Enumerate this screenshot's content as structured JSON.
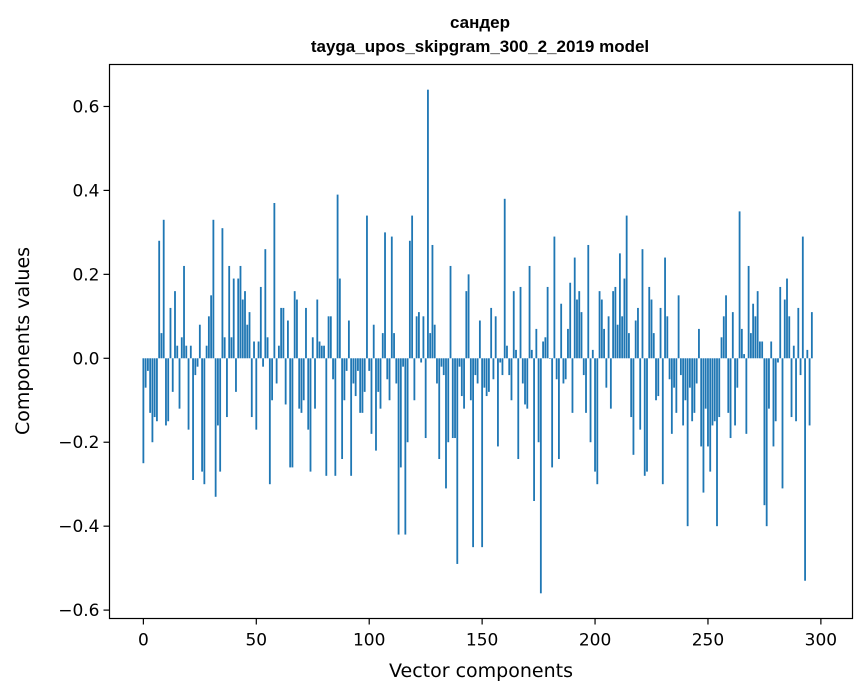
{
  "chart_data": {
    "type": "bar",
    "title": "сандер",
    "subtitle": "tayga_upos_skipgram_300_2_2019 model",
    "xlabel": "Vector components",
    "ylabel": "Components values",
    "xlim": [
      -15,
      314
    ],
    "ylim": [
      -0.62,
      0.7
    ],
    "xticks": [
      0,
      50,
      100,
      150,
      200,
      250,
      300
    ],
    "yticks": [
      0.6,
      0.4,
      0.2,
      0.0,
      -0.2,
      -0.4,
      -0.6
    ],
    "xtick_labels": [
      "0",
      "50",
      "100",
      "150",
      "200",
      "250",
      "300"
    ],
    "ytick_labels": [
      "0.6",
      "0.4",
      "0.2",
      "0.0",
      "−0.2",
      "−0.4",
      "−0.6"
    ],
    "grid": false,
    "bar_color": "#1f77b4",
    "values": [
      -0.25,
      -0.07,
      -0.03,
      -0.13,
      -0.2,
      -0.14,
      -0.15,
      0.28,
      0.06,
      0.33,
      -0.16,
      -0.15,
      0.12,
      -0.08,
      0.16,
      0.03,
      -0.12,
      0.05,
      0.22,
      0.03,
      -0.17,
      0.03,
      -0.29,
      -0.04,
      -0.02,
      0.08,
      -0.27,
      -0.3,
      0.03,
      0.1,
      0.15,
      0.33,
      -0.33,
      -0.16,
      -0.27,
      0.31,
      0.05,
      -0.14,
      0.22,
      0.05,
      0.19,
      -0.08,
      0.19,
      0.22,
      0.14,
      0.16,
      0.08,
      0.11,
      -0.14,
      0.04,
      -0.17,
      0.04,
      0.17,
      -0.02,
      0.26,
      0.05,
      -0.3,
      -0.1,
      0.37,
      -0.06,
      0.03,
      0.12,
      0.12,
      -0.11,
      0.09,
      -0.26,
      -0.26,
      0.16,
      0.14,
      -0.12,
      -0.13,
      -0.1,
      0.12,
      -0.17,
      -0.27,
      0.05,
      -0.12,
      0.14,
      0.04,
      0.03,
      0.03,
      -0.28,
      0.1,
      0.1,
      -0.05,
      -0.28,
      0.39,
      0.19,
      -0.24,
      -0.1,
      -0.03,
      0.09,
      -0.28,
      -0.06,
      -0.09,
      -0.03,
      -0.13,
      -0.13,
      -0.08,
      0.34,
      -0.03,
      -0.18,
      0.08,
      -0.22,
      -0.08,
      -0.12,
      0.06,
      0.3,
      -0.05,
      -0.1,
      0.29,
      0.06,
      -0.06,
      -0.42,
      -0.26,
      -0.02,
      -0.42,
      -0.2,
      0.28,
      0.34,
      -0.1,
      0.1,
      0.11,
      -0.01,
      0.1,
      -0.19,
      0.64,
      0.06,
      0.27,
      0.08,
      -0.06,
      -0.24,
      -0.02,
      -0.04,
      -0.31,
      -0.2,
      0.22,
      -0.19,
      -0.19,
      -0.49,
      -0.02,
      -0.09,
      -0.12,
      0.16,
      0.2,
      -0.1,
      -0.45,
      -0.04,
      -0.06,
      0.09,
      -0.45,
      -0.07,
      -0.09,
      -0.08,
      0.12,
      -0.05,
      0.1,
      -0.21,
      -0.01,
      -0.04,
      0.38,
      0.03,
      -0.04,
      -0.1,
      0.16,
      0.02,
      -0.24,
      0.17,
      -0.06,
      -0.11,
      -0.12,
      0.22,
      0.02,
      -0.34,
      0.07,
      -0.2,
      -0.56,
      0.04,
      0.05,
      0.17,
      0.0,
      -0.26,
      0.29,
      -0.05,
      -0.24,
      0.13,
      -0.06,
      -0.05,
      0.07,
      0.18,
      -0.13,
      0.24,
      0.14,
      0.16,
      0.11,
      -0.04,
      -0.13,
      0.27,
      -0.2,
      0.02,
      -0.27,
      -0.3,
      0.16,
      0.14,
      0.07,
      -0.07,
      0.1,
      -0.12,
      0.16,
      0.17,
      0.08,
      0.25,
      0.1,
      0.19,
      0.34,
      0.06,
      -0.14,
      -0.23,
      0.09,
      0.12,
      -0.17,
      0.26,
      -0.28,
      -0.27,
      0.17,
      0.14,
      0.06,
      -0.1,
      -0.09,
      0.12,
      -0.3,
      0.24,
      0.1,
      -0.05,
      -0.18,
      -0.07,
      -0.13,
      0.15,
      -0.04,
      -0.16,
      -0.1,
      -0.4,
      -0.07,
      -0.15,
      -0.13,
      -0.06,
      0.07,
      -0.21,
      -0.32,
      -0.12,
      -0.21,
      -0.27,
      -0.16,
      -0.15,
      -0.4,
      -0.14,
      0.05,
      0.1,
      0.15,
      -0.13,
      -0.19,
      0.11,
      -0.16,
      -0.07,
      0.35,
      0.07,
      0.01,
      -0.18,
      0.22,
      0.06,
      0.13,
      0.1,
      0.16,
      0.04,
      0.04,
      -0.35,
      -0.4,
      -0.12,
      0.04,
      -0.21,
      -0.15,
      -0.01,
      0.17,
      -0.31,
      0.14,
      0.19,
      0.1,
      -0.14,
      0.03,
      -0.15,
      0.12,
      -0.04,
      0.29,
      -0.53,
      0.02,
      -0.16,
      0.11
    ]
  }
}
